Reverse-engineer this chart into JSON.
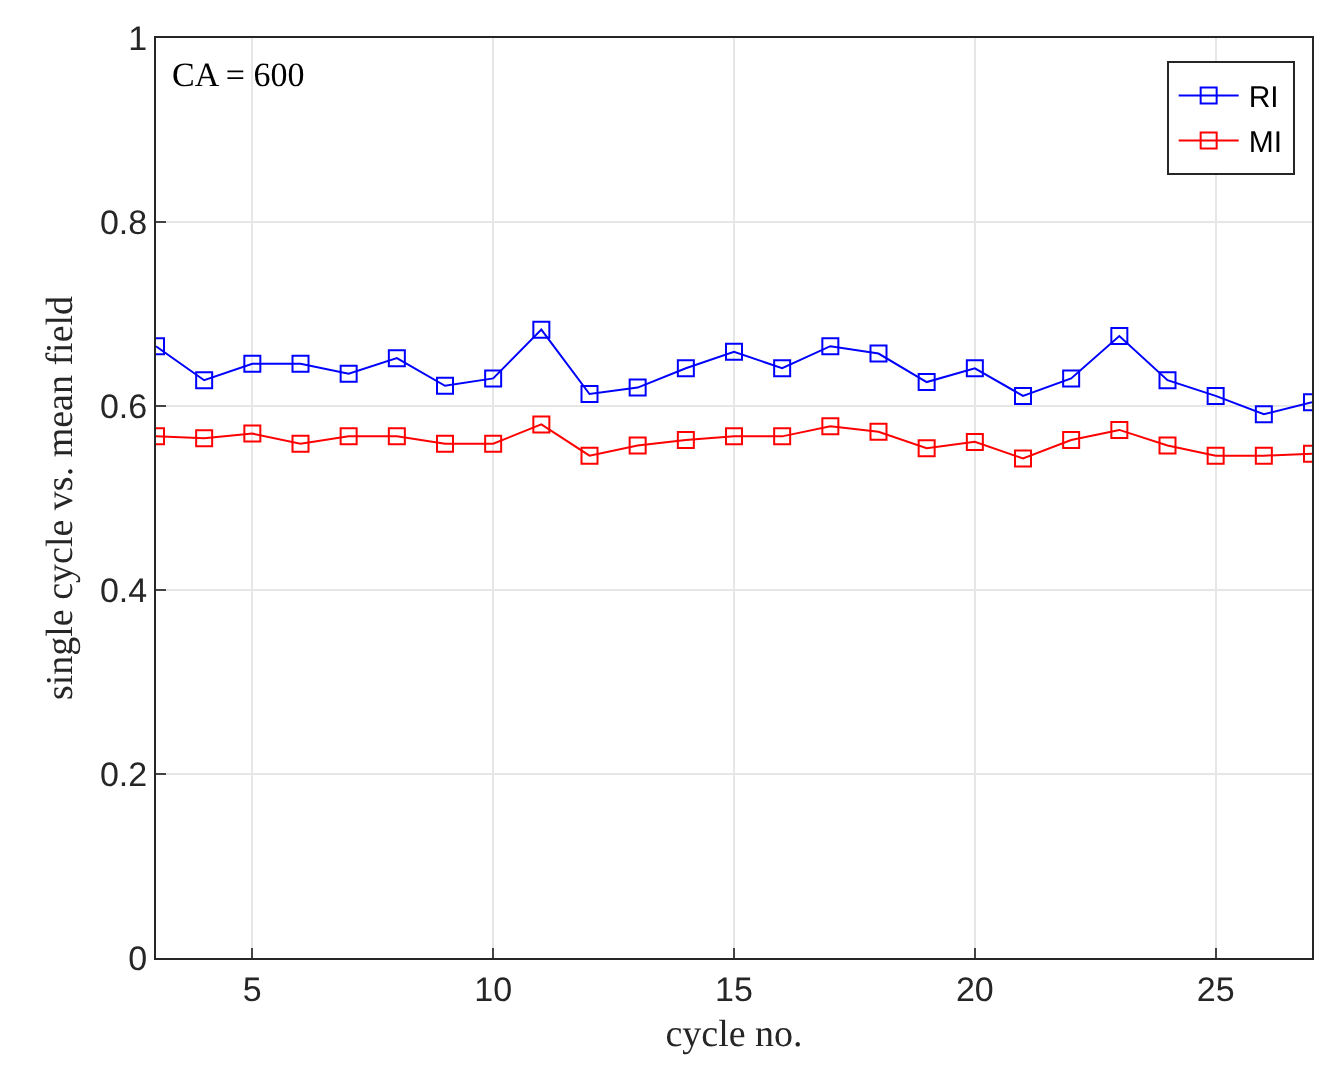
{
  "chart_data": {
    "type": "line",
    "xlabel": "cycle no.",
    "ylabel": "single cycle vs. mean field",
    "annotations": [
      "CA = 600"
    ],
    "x": [
      3,
      4,
      5,
      6,
      7,
      8,
      9,
      10,
      11,
      12,
      13,
      14,
      15,
      16,
      17,
      18,
      19,
      20,
      21,
      22,
      23,
      24,
      25,
      26,
      27
    ],
    "series": [
      {
        "name": "RI",
        "color": "#0000ff",
        "values": [
          0.665,
          0.628,
          0.646,
          0.646,
          0.635,
          0.652,
          0.622,
          0.63,
          0.683,
          0.613,
          0.62,
          0.641,
          0.659,
          0.641,
          0.665,
          0.657,
          0.626,
          0.641,
          0.611,
          0.63,
          0.676,
          0.628,
          0.611,
          0.591,
          0.604
        ]
      },
      {
        "name": "MI",
        "color": "#ff0000",
        "values": [
          0.567,
          0.565,
          0.57,
          0.559,
          0.567,
          0.567,
          0.559,
          0.559,
          0.58,
          0.546,
          0.557,
          0.563,
          0.567,
          0.567,
          0.578,
          0.572,
          0.554,
          0.561,
          0.543,
          0.563,
          0.574,
          0.557,
          0.546,
          0.546,
          0.548
        ]
      }
    ],
    "xlim": [
      3,
      27
    ],
    "xticks": [
      5,
      10,
      15,
      20,
      25
    ],
    "ylim": [
      0,
      1
    ],
    "yticks": [
      0,
      0.2,
      0.4,
      0.6,
      0.8,
      1
    ],
    "grid": true,
    "legend": "top right",
    "marker": "square",
    "line_style": "solid"
  }
}
